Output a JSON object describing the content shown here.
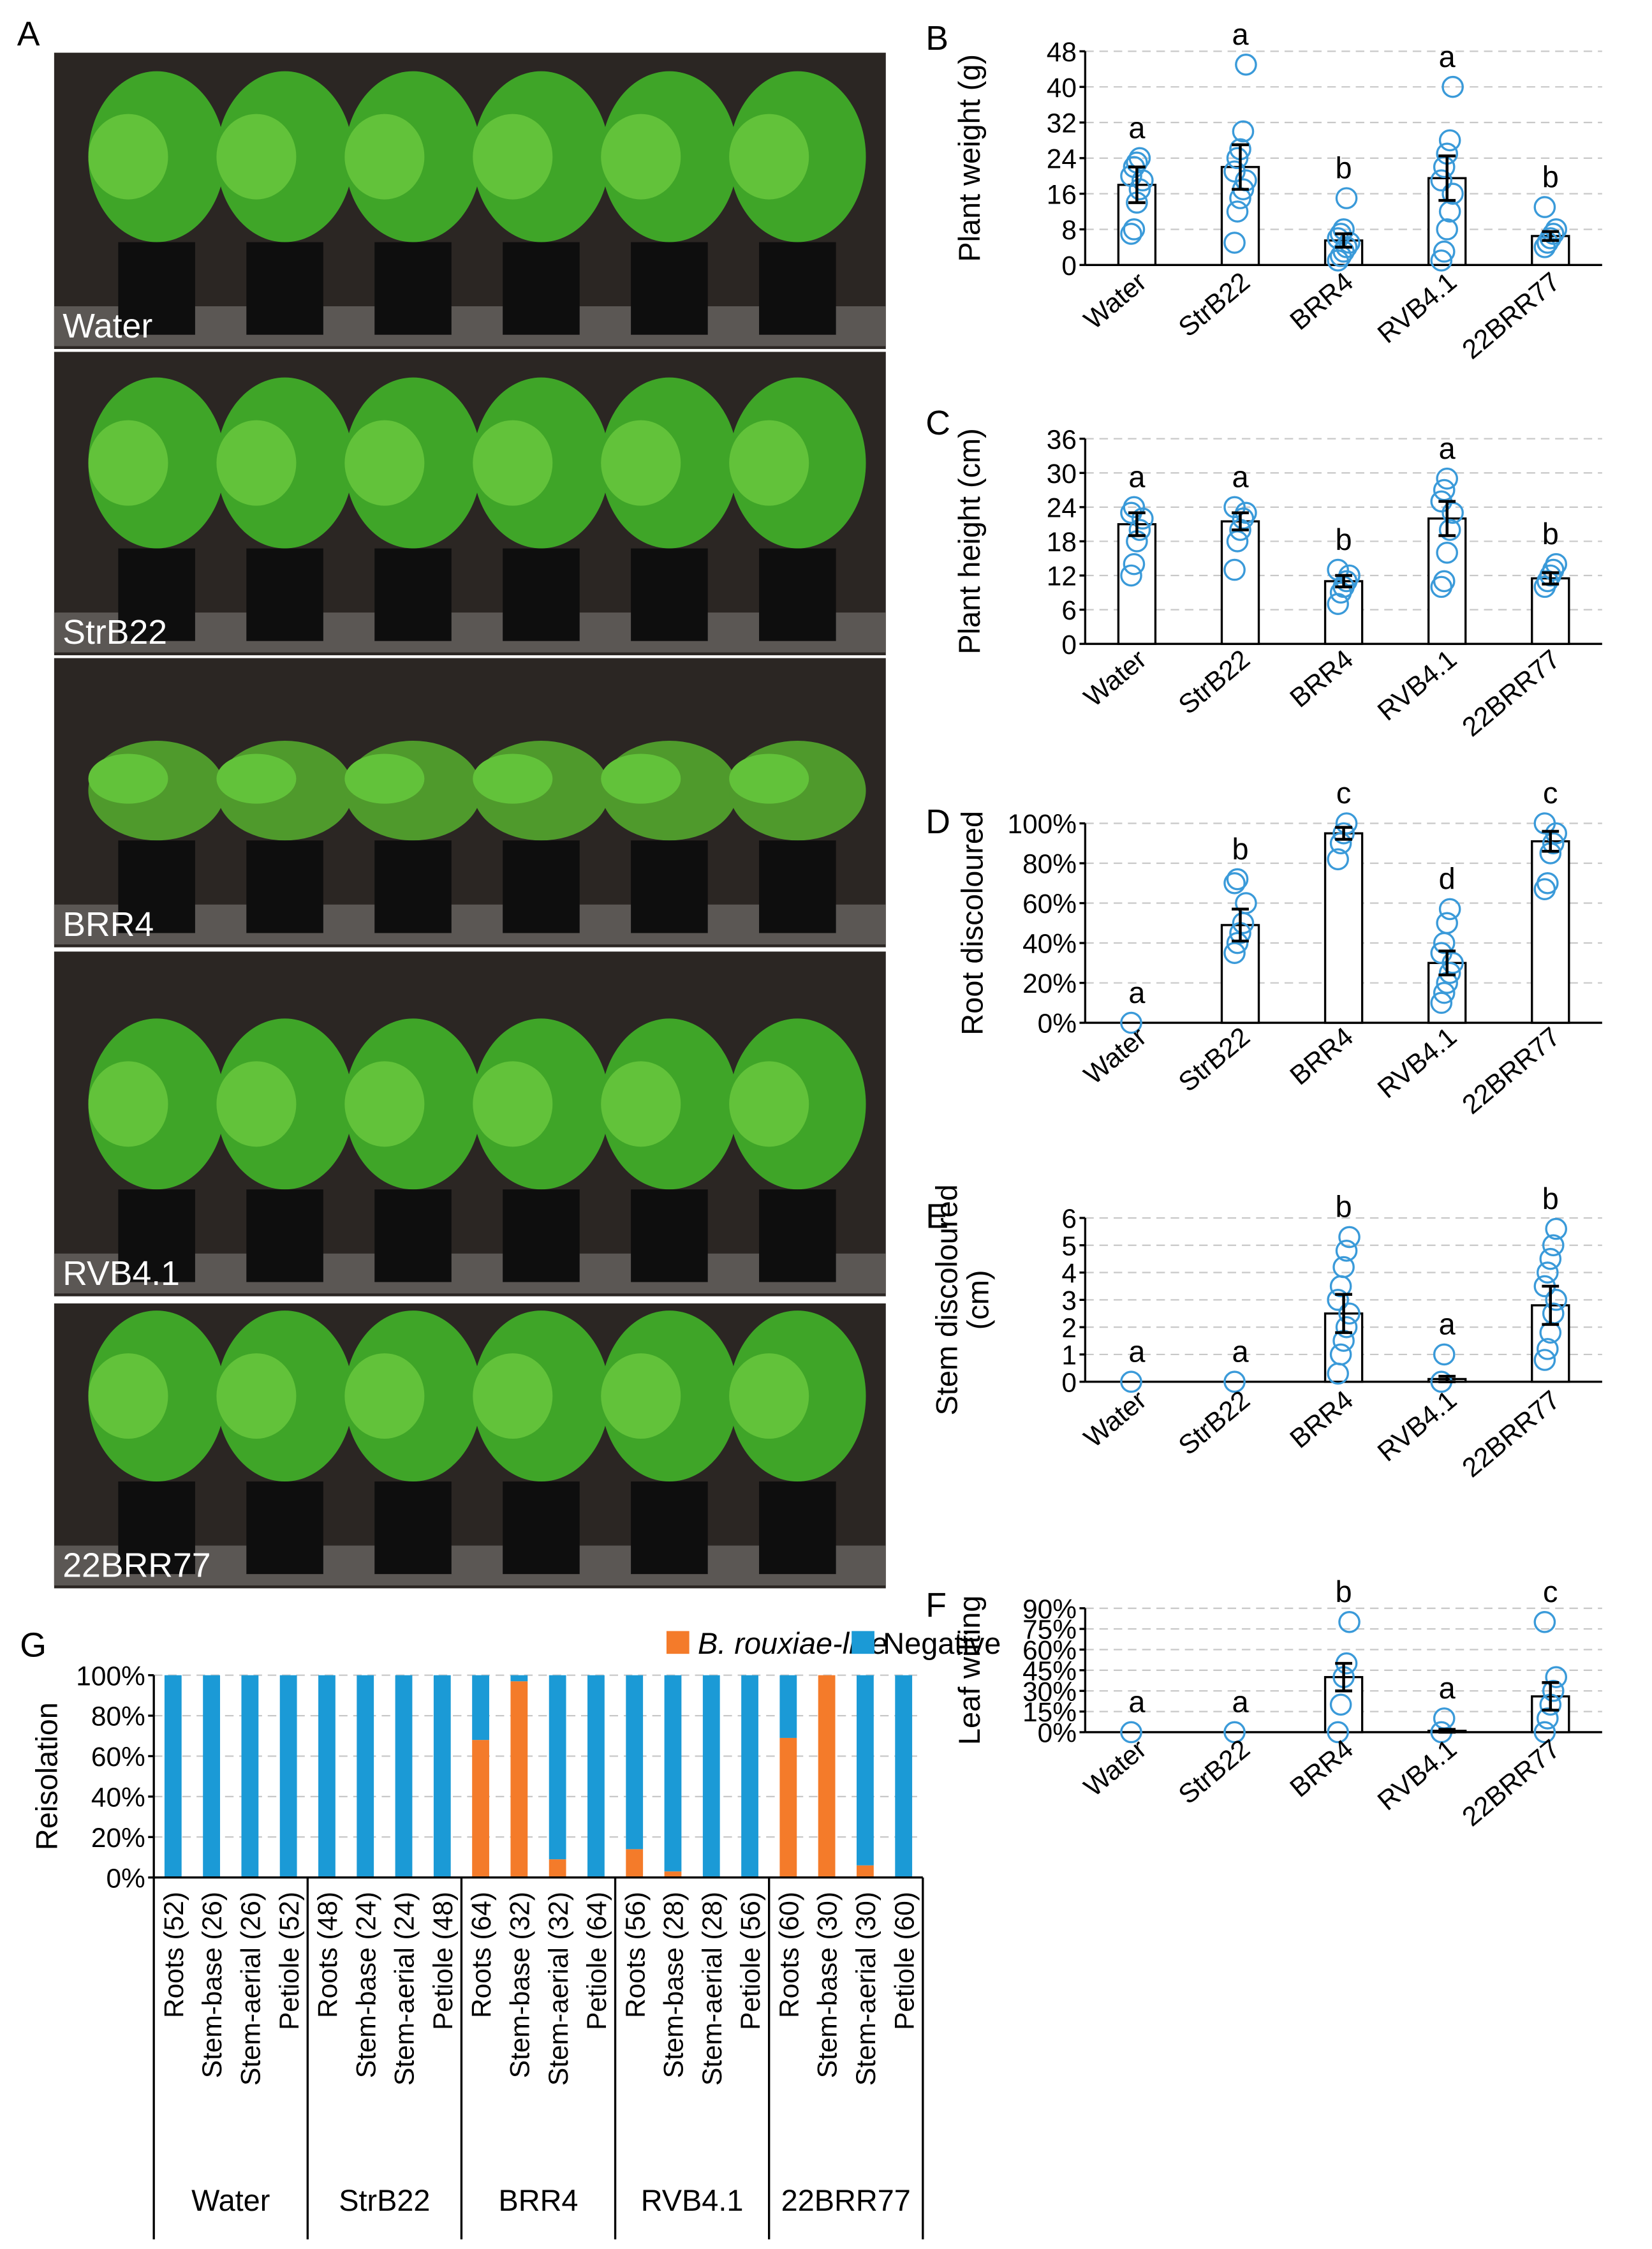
{
  "photo": {
    "panel": "A",
    "labels": [
      "Water",
      "StrB22",
      "BRR4",
      "RVB4.1",
      "22BRR77"
    ]
  },
  "chart_data": [
    {
      "type": "bar",
      "panel": "B",
      "ylabel": [
        "Plant weight (g)"
      ],
      "categories": [
        "Water",
        "StrB22",
        "BRR4",
        "RVB4.1",
        "22BRR77"
      ],
      "values": [
        18,
        22,
        5.5,
        19.5,
        6.5
      ],
      "errors": [
        4,
        5,
        1.5,
        5,
        1
      ],
      "letters": [
        "a",
        "a",
        "b",
        "a",
        "b"
      ],
      "points": [
        [
          7,
          8,
          14,
          17,
          19,
          20,
          22,
          23,
          24
        ],
        [
          5,
          12,
          15,
          17,
          19,
          21,
          24,
          26,
          30,
          45
        ],
        [
          1,
          2,
          3,
          4,
          5,
          6,
          7,
          8,
          15
        ],
        [
          1,
          3,
          8,
          12,
          16,
          19,
          22,
          25,
          28,
          40
        ],
        [
          4,
          5,
          6,
          7,
          8,
          13
        ]
      ],
      "ylim": [
        0,
        48
      ],
      "yticks": [
        0,
        8,
        16,
        24,
        32,
        40,
        48
      ],
      "grid": true,
      "color": "#ffffff",
      "point_color": "#3a9ad9"
    },
    {
      "type": "bar",
      "panel": "C",
      "ylabel": [
        "Plant height (cm)"
      ],
      "categories": [
        "Water",
        "StrB22",
        "BRR4",
        "RVB4.1",
        "22BRR77"
      ],
      "values": [
        21,
        21.5,
        11,
        22,
        11.5
      ],
      "errors": [
        2,
        1.5,
        1,
        3,
        1
      ],
      "letters": [
        "a",
        "a",
        "b",
        "a",
        "b"
      ],
      "points": [
        [
          12,
          14,
          18,
          20,
          22,
          23,
          24
        ],
        [
          13,
          18,
          20,
          22,
          23,
          24
        ],
        [
          7,
          9,
          10,
          11,
          12,
          13
        ],
        [
          10,
          11,
          16,
          20,
          23,
          25,
          27,
          29
        ],
        [
          10,
          11,
          12,
          13,
          14
        ]
      ],
      "ylim": [
        0,
        36
      ],
      "yticks": [
        0,
        6,
        12,
        18,
        24,
        30,
        36
      ],
      "grid": true,
      "color": "#ffffff",
      "point_color": "#3a9ad9"
    },
    {
      "type": "bar",
      "panel": "D",
      "ylabel": [
        "Root discoloured"
      ],
      "categories": [
        "Water",
        "StrB22",
        "BRR4",
        "RVB4.1",
        "22BRR77"
      ],
      "values": [
        0,
        49,
        95,
        30,
        91
      ],
      "errors": [
        0,
        8,
        3,
        6,
        5
      ],
      "letters": [
        "a",
        "b",
        "c",
        "d",
        "c"
      ],
      "points": [
        [
          0
        ],
        [
          35,
          40,
          45,
          50,
          60,
          70,
          72
        ],
        [
          82,
          90,
          95,
          100
        ],
        [
          10,
          15,
          20,
          25,
          30,
          35,
          40,
          50,
          57
        ],
        [
          67,
          70,
          85,
          90,
          95,
          100
        ]
      ],
      "ylim": [
        0,
        100
      ],
      "yticks": [
        {
          "value": 0,
          "label": "0%"
        },
        {
          "value": 20,
          "label": "20%"
        },
        {
          "value": 40,
          "label": "40%"
        },
        {
          "value": 60,
          "label": "60%"
        },
        {
          "value": 80,
          "label": "80%"
        },
        {
          "value": 100,
          "label": "100%"
        }
      ],
      "grid": true,
      "color": "#ffffff",
      "point_color": "#3a9ad9"
    },
    {
      "type": "bar",
      "panel": "E",
      "ylabel": [
        "Stem discoloured",
        "(cm)"
      ],
      "categories": [
        "Water",
        "StrB22",
        "BRR4",
        "RVB4.1",
        "22BRR77"
      ],
      "values": [
        0,
        0,
        2.5,
        0.1,
        2.8
      ],
      "errors": [
        0,
        0,
        0.7,
        0.1,
        0.7
      ],
      "letters": [
        "a",
        "a",
        "b",
        "a",
        "b"
      ],
      "points": [
        [
          0
        ],
        [
          0
        ],
        [
          0.3,
          1,
          1.5,
          2,
          2.5,
          3,
          3.5,
          4.2,
          4.8,
          5.3
        ],
        [
          0,
          1
        ],
        [
          0.8,
          1.2,
          1.8,
          2.5,
          3,
          3.5,
          4,
          4.5,
          5,
          5.6
        ]
      ],
      "ylim": [
        0,
        6
      ],
      "yticks": [
        0,
        1,
        2,
        3,
        4,
        5,
        6
      ],
      "grid": true,
      "color": "#ffffff",
      "point_color": "#3a9ad9"
    },
    {
      "type": "bar",
      "panel": "F",
      "ylabel": [
        "Leaf wilting"
      ],
      "categories": [
        "Water",
        "StrB22",
        "BRR4",
        "RVB4.1",
        "22BRR77"
      ],
      "values": [
        0,
        0,
        40,
        1,
        26
      ],
      "errors": [
        0,
        0,
        10,
        1,
        10
      ],
      "letters": [
        "a",
        "a",
        "b",
        "a",
        "c"
      ],
      "points": [
        [
          0
        ],
        [
          0
        ],
        [
          0,
          20,
          40,
          50,
          80
        ],
        [
          0,
          10
        ],
        [
          0,
          10,
          20,
          30,
          40,
          80
        ]
      ],
      "ylim": [
        0,
        90
      ],
      "yticks": [
        {
          "value": 0,
          "label": "0%"
        },
        {
          "value": 15,
          "label": "15%"
        },
        {
          "value": 30,
          "label": "30%"
        },
        {
          "value": 45,
          "label": "45%"
        },
        {
          "value": 60,
          "label": "60%"
        },
        {
          "value": 75,
          "label": "75%"
        },
        {
          "value": 90,
          "label": "90%"
        }
      ],
      "grid": true,
      "color": "#ffffff",
      "point_color": "#3a9ad9"
    },
    {
      "type": "stacked_bar",
      "panel": "G",
      "ylabel": [
        "Reisolation"
      ],
      "categories": [
        "Roots (52)",
        "Stem-base (26)",
        "Stem-aerial (26)",
        "Petiole (52)",
        "Roots (48)",
        "Stem-base (24)",
        "Stem-aerial (24)",
        "Petiole (48)",
        "Roots (64)",
        "Stem-base (32)",
        "Stem-aerial (32)",
        "Petiole (64)",
        "Roots (56)",
        "Stem-base (28)",
        "Stem-aerial (28)",
        "Petiole (56)",
        "Roots (60)",
        "Stem-base (30)",
        "Stem-aerial (30)",
        "Petiole (60)"
      ],
      "groups": [
        "Water",
        "StrB22",
        "BRR4",
        "RVB4.1",
        "22BRR77"
      ],
      "series": [
        {
          "name": "B. rouxiae-like",
          "color": "#f47b2a",
          "values": [
            0,
            0,
            0,
            0,
            0,
            0,
            0,
            0,
            68,
            97,
            9,
            0,
            14,
            3,
            0,
            0,
            69,
            100,
            6,
            0
          ]
        },
        {
          "name": "Negative",
          "color": "#1b9ad6",
          "values": [
            100,
            100,
            100,
            100,
            100,
            100,
            100,
            100,
            32,
            3,
            91,
            100,
            86,
            97,
            100,
            100,
            31,
            0,
            94,
            100
          ]
        }
      ],
      "ylim": [
        0,
        100
      ],
      "yticks": [
        {
          "value": 0,
          "label": "0%"
        },
        {
          "value": 20,
          "label": "20%"
        },
        {
          "value": 40,
          "label": "40%"
        },
        {
          "value": 60,
          "label": "60%"
        },
        {
          "value": 80,
          "label": "80%"
        },
        {
          "value": 100,
          "label": "100%"
        }
      ],
      "grid": true,
      "legend": "top-right"
    }
  ]
}
